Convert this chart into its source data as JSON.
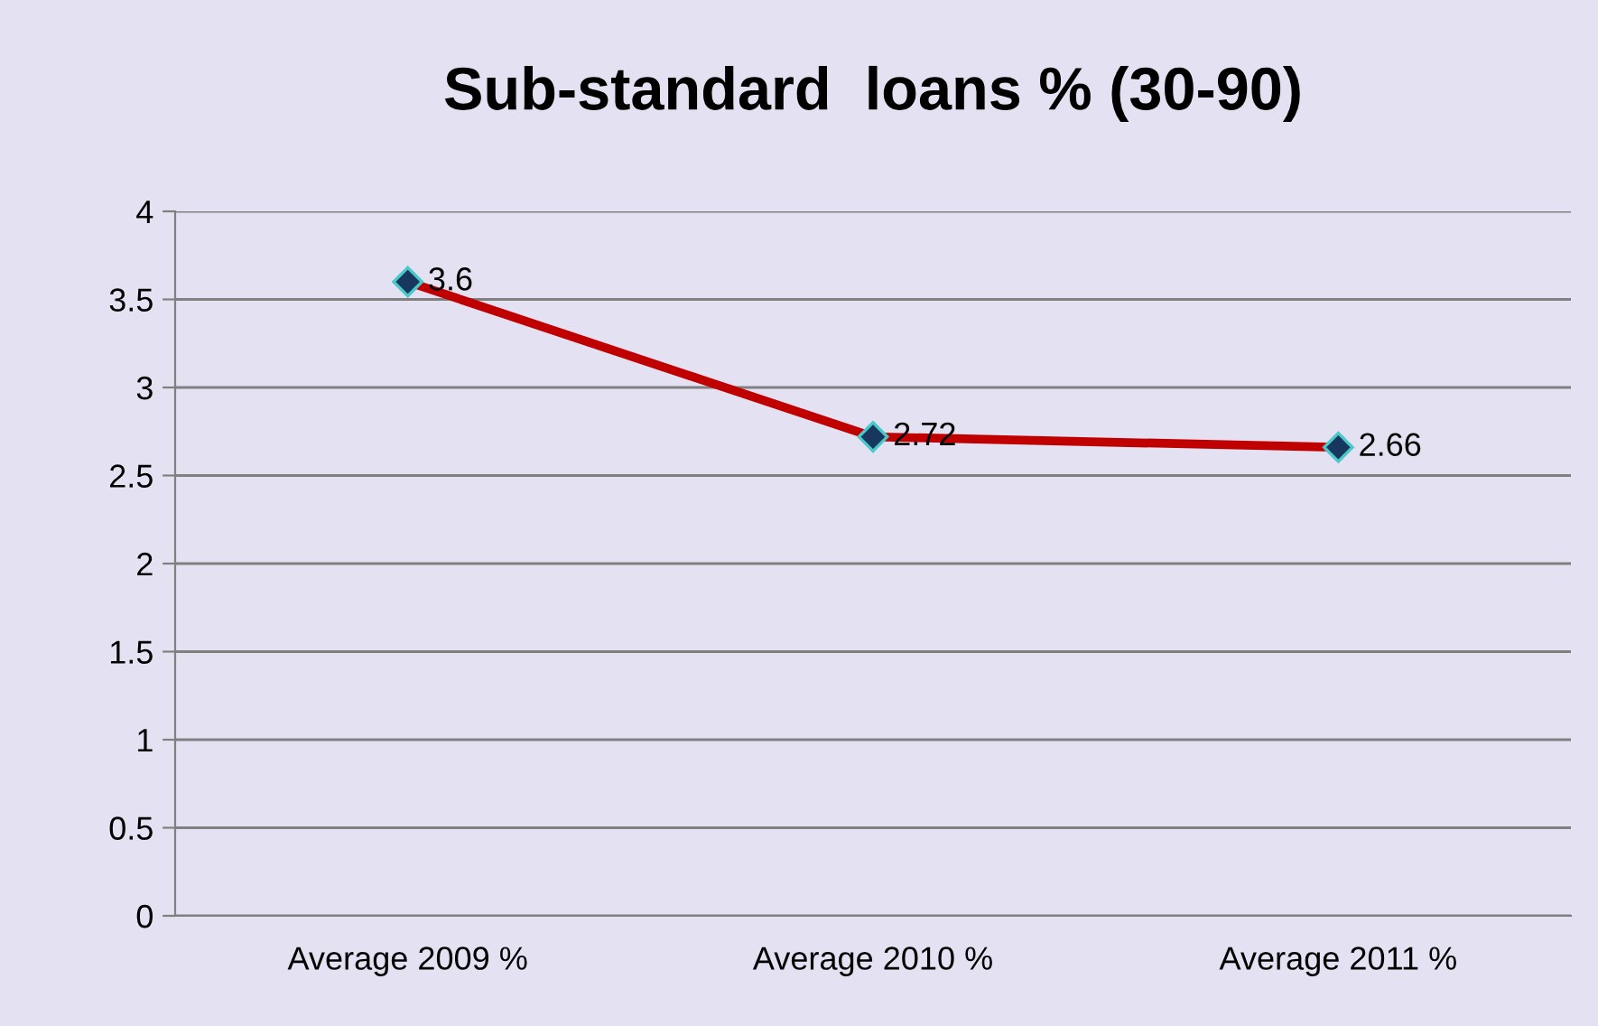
{
  "chart_data": {
    "type": "line",
    "title": "Sub-standard  loans % (30-90)",
    "categories": [
      "Average 2009 %",
      "Average 2010 %",
      "Average 2011 %"
    ],
    "series": [
      {
        "color": "#c00000",
        "values": [
          3.6,
          2.72,
          2.66
        ]
      }
    ],
    "ylim": [
      0,
      4
    ],
    "yticks": [
      0,
      0.5,
      1,
      1.5,
      2,
      2.5,
      3,
      3.5,
      4
    ],
    "grid": "y",
    "marker": "diamond",
    "data_labels": true,
    "legend": false
  }
}
